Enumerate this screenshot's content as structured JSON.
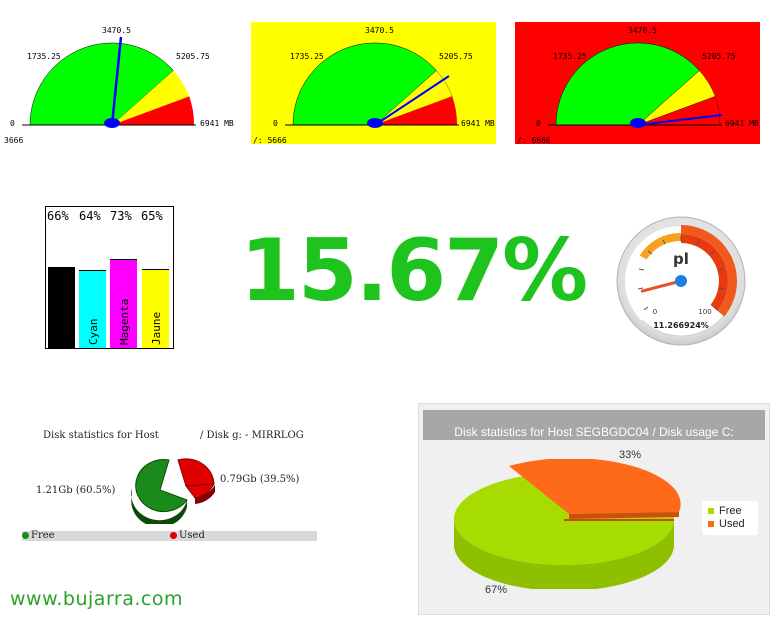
{
  "gauges": [
    {
      "bg": "#ffffff",
      "needle_value": 3666,
      "max": 6941,
      "ticks": [
        "0",
        "1735.25",
        "3470.5",
        "5205.75",
        "6941 MB"
      ],
      "value_label": "3666"
    },
    {
      "bg": "#ffff00",
      "needle_value": 5666,
      "max": 6941,
      "ticks": [
        "0",
        "1735.25",
        "3470.5",
        "5205.75",
        "6941 MB"
      ],
      "value_label": "/: 5666"
    },
    {
      "bg": "#ff0000",
      "needle_value": 6666,
      "max": 6941,
      "ticks": [
        "0",
        "1735.25",
        "3470.5",
        "5205.75",
        "6941 MB"
      ],
      "value_label": "/: 6666"
    }
  ],
  "ink": {
    "items": [
      {
        "pct": "66%",
        "label": "",
        "color": "#000000",
        "level": 0.66
      },
      {
        "pct": "64%",
        "label": "Cyan",
        "color": "#00ffff",
        "level": 0.64
      },
      {
        "pct": "73%",
        "label": "Magenta",
        "color": "#ff00ff",
        "level": 0.73
      },
      {
        "pct": "65%",
        "label": "Jaune",
        "color": "#ffff00",
        "level": 0.65
      }
    ]
  },
  "big_percentage": "15.67%",
  "dial": {
    "label": "pl",
    "min": "0",
    "max": "100",
    "value": 11.266924,
    "value_text": "11.266924%"
  },
  "disk_mirrlog": {
    "title_left": "Disk statistics for Host",
    "title_right": "/ Disk g: - MIRRLOG",
    "free_label": "1.21Gb (60.5%)",
    "used_label": "0.79Gb (39.5%)",
    "legend_free": "Free",
    "legend_used": "Used",
    "free_color": "#1a8a1a",
    "used_color": "#e00000"
  },
  "disk_c": {
    "title": "Disk statistics for Host SEGBGDC04 / Disk usage C:",
    "used_pct_label": "33%",
    "free_pct_label": "67%",
    "legend_free": "Free",
    "legend_used": "Used",
    "free_color": "#a6dc00",
    "used_color": "#ff6a1a",
    "free_fraction": 0.67
  },
  "website": "www.bujarra.com"
}
